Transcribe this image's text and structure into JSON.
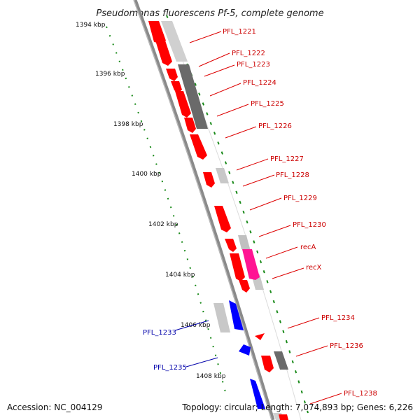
{
  "title": "Pseudomonas fluorescens Pf-5, complete genome",
  "footer": {
    "accession": "Accession: NC_004129",
    "topology": "Topology: circular; Length: 7,074,893 bp; Genes: 6,226"
  },
  "kbp_labels": [
    "1394 kbp",
    "1396 kbp",
    "1398 kbp",
    "1400 kbp",
    "1402 kbp",
    "1404 kbp",
    "1406 kbp",
    "1408 kbp"
  ],
  "colors": {
    "forward_gene": "#ff0000",
    "reverse_gene": "#0000ff",
    "highlight_gene": "#ff1493",
    "grey_light": "#c8c8c8",
    "grey_dark": "#6a6a6a",
    "backbone": "#7a7a7a",
    "gc_dots": "#1a8a1a",
    "label_forward": "#cc0000",
    "label_reverse": "#0000aa"
  },
  "gene_labels_forward": [
    "PFL_1221",
    "PFL_1222",
    "PFL_1223",
    "PFL_1224",
    "PFL_1225",
    "PFL_1226",
    "PFL_1227",
    "PFL_1228",
    "PFL_1229",
    "PFL_1230",
    "recA",
    "recX",
    "PFL_1234",
    "PFL_1236",
    "PFL_1238"
  ],
  "gene_labels_reverse": [
    "PFL_1233",
    "PFL_1235"
  ]
}
